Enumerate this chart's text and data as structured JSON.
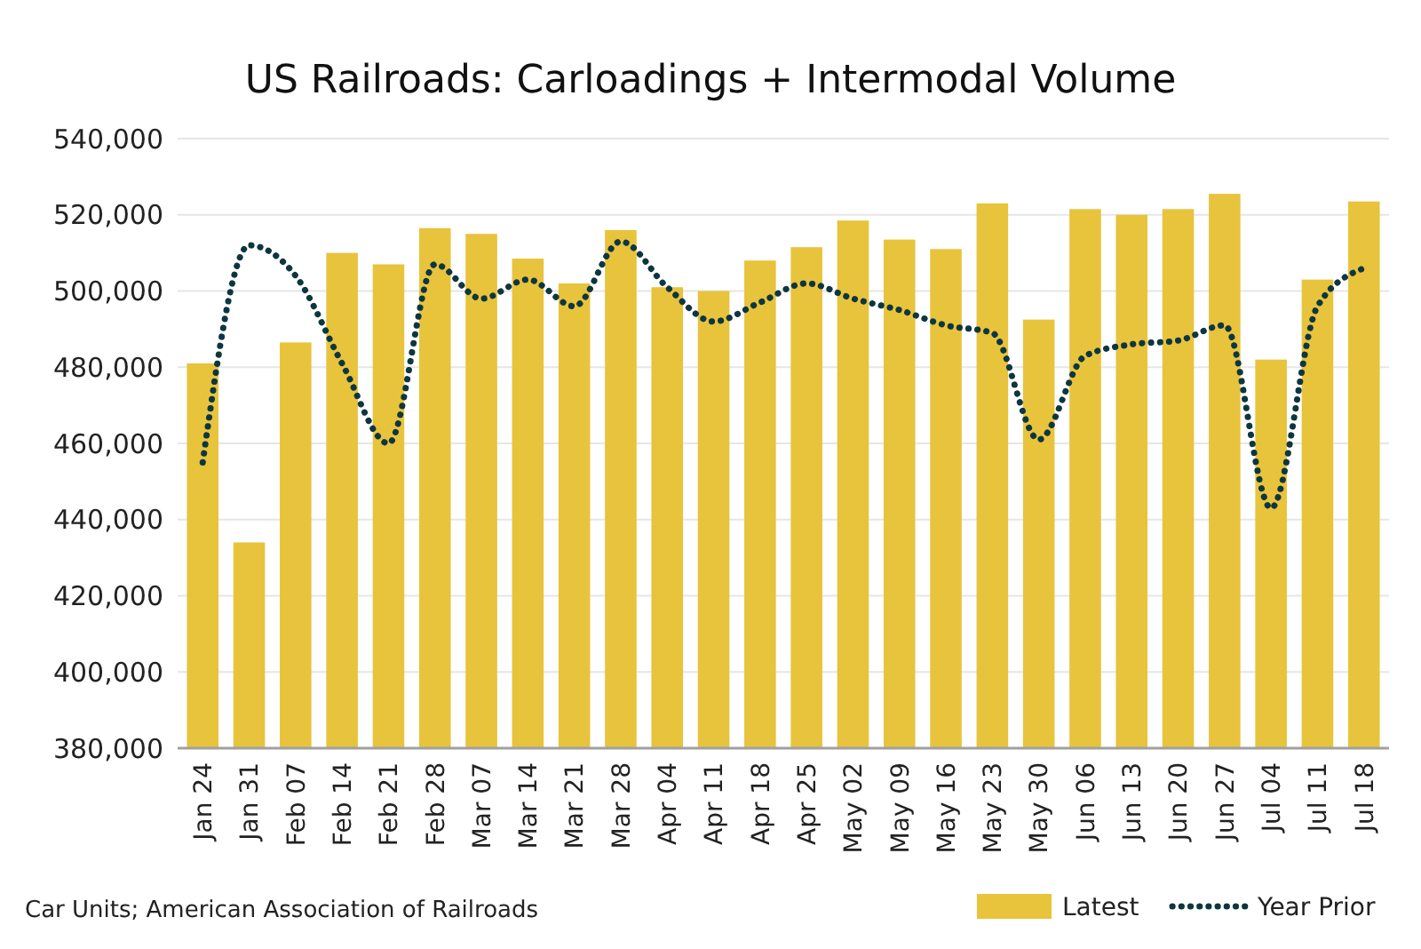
{
  "chart_data": {
    "type": "bar",
    "title": "US Railroads: Carloadings + Intermodal Volume",
    "categories": [
      "Jan 24",
      "Jan 31",
      "Feb 07",
      "Feb 14",
      "Feb 21",
      "Feb 28",
      "Mar 07",
      "Mar 14",
      "Mar 21",
      "Mar 28",
      "Apr 04",
      "Apr 11",
      "Apr 18",
      "Apr 25",
      "May 02",
      "May 09",
      "May 16",
      "May 23",
      "May 30",
      "Jun 06",
      "Jun 13",
      "Jun 20",
      "Jun 27",
      "Jul 04",
      "Jul 11",
      "Jul 18"
    ],
    "series": [
      {
        "name": "Latest",
        "color": "#e8c33c",
        "values": [
          481000,
          434000,
          486500,
          510000,
          507000,
          516500,
          515000,
          508500,
          502000,
          516000,
          501000,
          500000,
          508000,
          511500,
          518500,
          513500,
          511000,
          523000,
          492500,
          521500,
          520000,
          521500,
          525500,
          482000,
          503000,
          523500
        ]
      },
      {
        "name": "Year Prior",
        "type": "line",
        "color": "#0d3640",
        "line_style": "dotted",
        "values": [
          455000,
          512000,
          504000,
          481000,
          460000,
          507000,
          498000,
          503000,
          496000,
          513000,
          501000,
          492000,
          497000,
          502000,
          498000,
          495000,
          491000,
          489000,
          461000,
          483000,
          486000,
          487000,
          491000,
          443000,
          496000,
          506000
        ]
      }
    ],
    "ylim": [
      380000,
      540000
    ],
    "yticks": [
      {
        "value": 380000,
        "label": "380,000"
      },
      {
        "value": 400000,
        "label": "400,000"
      },
      {
        "value": 420000,
        "label": "420,000"
      },
      {
        "value": 440000,
        "label": "440,000"
      },
      {
        "value": 460000,
        "label": "460,000"
      },
      {
        "value": 480000,
        "label": "480,000"
      },
      {
        "value": 500000,
        "label": "500,000"
      },
      {
        "value": 520000,
        "label": "520,000"
      },
      {
        "value": 540000,
        "label": "540,000"
      }
    ],
    "grid": "y",
    "legend": "bottom right",
    "marker": "none",
    "annotations": [
      "Car Units; American Association of Railroads"
    ]
  }
}
